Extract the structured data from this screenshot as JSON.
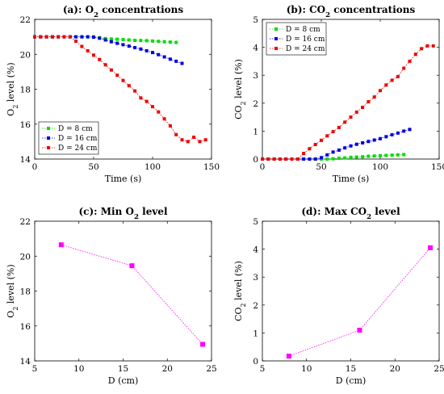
{
  "colors": {
    "green": "#00dd00",
    "blue": "#0000dd",
    "red": "#ee0000",
    "magenta": "#ff00ff"
  },
  "chart_data": [
    {
      "type": "line",
      "title": "(a): O",
      "title_sub": "2",
      "title_rest": " concentrations",
      "xlabel": "Time (s)",
      "ylabel": "O",
      "ylabel_sub": "2",
      "ylabel_rest": " level (%)",
      "xlim": [
        0,
        150
      ],
      "ylim": [
        14,
        22
      ],
      "xticks": [
        0,
        50,
        100,
        150
      ],
      "yticks": [
        14,
        16,
        18,
        20,
        22
      ],
      "legend": "bottom-left",
      "series": [
        {
          "name": "D = 8 cm",
          "color": "green",
          "x": [
            0,
            5,
            10,
            15,
            20,
            25,
            30,
            35,
            40,
            45,
            50,
            55,
            60,
            65,
            70,
            75,
            80,
            85,
            90,
            95,
            100,
            105,
            110,
            115,
            120
          ],
          "y": [
            21,
            21,
            21,
            21,
            21,
            21,
            21,
            21,
            21,
            21,
            21,
            20.95,
            20.9,
            20.88,
            20.86,
            20.84,
            20.82,
            20.8,
            20.79,
            20.78,
            20.76,
            20.74,
            20.72,
            20.7,
            20.68
          ]
        },
        {
          "name": "D = 16 cm",
          "color": "blue",
          "x": [
            0,
            5,
            10,
            15,
            20,
            25,
            30,
            35,
            40,
            45,
            50,
            55,
            60,
            65,
            70,
            75,
            80,
            85,
            90,
            95,
            100,
            105,
            110,
            115,
            120,
            125
          ],
          "y": [
            21,
            21,
            21,
            21,
            21,
            21,
            21,
            21,
            21,
            21,
            20.98,
            20.92,
            20.82,
            20.72,
            20.63,
            20.55,
            20.47,
            20.38,
            20.3,
            20.2,
            20.1,
            19.98,
            19.85,
            19.72,
            19.6,
            19.48
          ]
        },
        {
          "name": "D = 24 cm",
          "color": "red",
          "x": [
            0,
            5,
            10,
            15,
            20,
            25,
            30,
            35,
            40,
            45,
            50,
            55,
            60,
            65,
            70,
            75,
            80,
            85,
            90,
            95,
            100,
            105,
            110,
            115,
            120,
            125,
            130,
            135,
            140,
            145
          ],
          "y": [
            21,
            21,
            21,
            21,
            21,
            21,
            21,
            20.75,
            20.45,
            20.2,
            19.95,
            19.7,
            19.4,
            19.1,
            18.8,
            18.5,
            18.2,
            17.9,
            17.5,
            17.3,
            17,
            16.7,
            16.3,
            15.9,
            15.4,
            15.1,
            15,
            15.25,
            15,
            15.1
          ]
        }
      ]
    },
    {
      "type": "line",
      "title": "(b): CO",
      "title_sub": "2",
      "title_rest": " concentrations",
      "xlabel": "Time (s)",
      "ylabel": "CO",
      "ylabel_sub": "2",
      "ylabel_rest": " level (%)",
      "xlim": [
        0,
        150
      ],
      "ylim": [
        0,
        5
      ],
      "xticks": [
        0,
        50,
        100,
        150
      ],
      "yticks": [
        0,
        1,
        2,
        3,
        4,
        5
      ],
      "legend": "top-left",
      "series": [
        {
          "name": "D = 8 cm",
          "color": "green",
          "x": [
            0,
            5,
            10,
            15,
            20,
            25,
            30,
            35,
            40,
            45,
            50,
            55,
            60,
            65,
            70,
            75,
            80,
            85,
            90,
            95,
            100,
            105,
            110,
            115,
            120
          ],
          "y": [
            0,
            0,
            0,
            0,
            0,
            0,
            0,
            0,
            0,
            0,
            0,
            0,
            0.01,
            0.03,
            0.04,
            0.06,
            0.07,
            0.08,
            0.1,
            0.11,
            0.12,
            0.13,
            0.14,
            0.15,
            0.16
          ]
        },
        {
          "name": "D = 16 cm",
          "color": "blue",
          "x": [
            0,
            5,
            10,
            15,
            20,
            25,
            30,
            35,
            40,
            45,
            50,
            55,
            60,
            65,
            70,
            75,
            80,
            85,
            90,
            95,
            100,
            105,
            110,
            115,
            120,
            125
          ],
          "y": [
            0,
            0,
            0,
            0,
            0,
            0,
            0,
            0,
            0,
            0,
            0.05,
            0.15,
            0.25,
            0.32,
            0.4,
            0.47,
            0.53,
            0.58,
            0.63,
            0.68,
            0.73,
            0.8,
            0.87,
            0.93,
            1,
            1.06
          ]
        },
        {
          "name": "D = 24 cm",
          "color": "red",
          "x": [
            0,
            5,
            10,
            15,
            20,
            25,
            30,
            35,
            40,
            45,
            50,
            55,
            60,
            65,
            70,
            75,
            80,
            85,
            90,
            95,
            100,
            105,
            110,
            115,
            120,
            125,
            130,
            135,
            140,
            145
          ],
          "y": [
            0,
            0,
            0,
            0,
            0,
            0,
            0,
            0.2,
            0.37,
            0.52,
            0.67,
            0.83,
            0.98,
            1.13,
            1.32,
            1.5,
            1.68,
            1.85,
            2.05,
            2.22,
            2.45,
            2.65,
            2.82,
            2.95,
            3.25,
            3.5,
            3.75,
            3.95,
            4.05,
            4.05
          ]
        }
      ]
    },
    {
      "type": "line",
      "title": "(c): Min O",
      "title_sub": "2",
      "title_rest": " level",
      "xlabel": "D (cm)",
      "ylabel": "O",
      "ylabel_sub": "2",
      "ylabel_rest": " level (%)",
      "xlim": [
        5,
        25
      ],
      "ylim": [
        14,
        22
      ],
      "xticks": [
        5,
        10,
        15,
        20,
        25
      ],
      "yticks": [
        14,
        16,
        18,
        20,
        22
      ],
      "series": [
        {
          "color": "magenta",
          "x": [
            8,
            16,
            24
          ],
          "y": [
            20.65,
            19.45,
            14.95
          ]
        }
      ]
    },
    {
      "type": "line",
      "title": "(d): Max CO",
      "title_sub": "2",
      "title_rest": " level",
      "xlabel": "D (cm)",
      "ylabel": "CO",
      "ylabel_sub": "2",
      "ylabel_rest": " level (%)",
      "xlim": [
        5,
        25
      ],
      "ylim": [
        0,
        5
      ],
      "xticks": [
        5,
        10,
        15,
        20,
        25
      ],
      "yticks": [
        0,
        1,
        2,
        3,
        4,
        5
      ],
      "series": [
        {
          "color": "magenta",
          "x": [
            8,
            16,
            24
          ],
          "y": [
            0.17,
            1.1,
            4.05
          ]
        }
      ]
    }
  ]
}
